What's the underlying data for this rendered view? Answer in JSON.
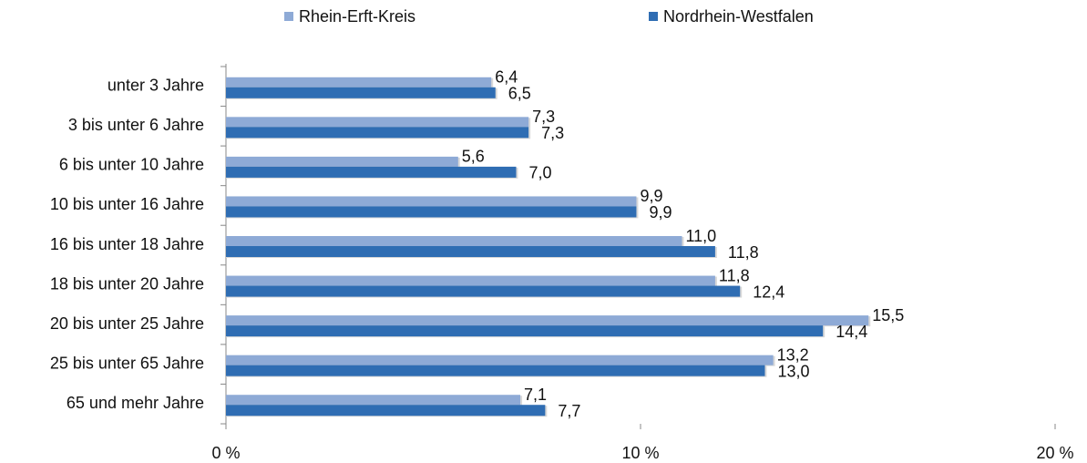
{
  "chart_data": {
    "type": "hbar",
    "categories": [
      "unter 3 Jahre",
      "3 bis unter 6 Jahre",
      "6 bis unter 10 Jahre",
      "10 bis unter 16 Jahre",
      "16 bis unter 18 Jahre",
      "18 bis unter 20 Jahre",
      "20 bis unter 25 Jahre",
      "25 bis unter 65 Jahre",
      "65 und mehr Jahre"
    ],
    "series": [
      {
        "name": "Rhein-Erft-Kreis",
        "color": "#8eaad6",
        "values": [
          6.4,
          7.3,
          5.6,
          9.9,
          11.0,
          11.8,
          15.5,
          13.2,
          7.1
        ],
        "value_labels": [
          "6,4",
          "7,3",
          "5,6",
          "9,9",
          "11,0",
          "11,8",
          "15,5",
          "13,2",
          "7,1"
        ]
      },
      {
        "name": "Nordrhein-Westfalen",
        "color": "#2f6db3",
        "values": [
          6.5,
          7.3,
          7.0,
          9.9,
          11.8,
          12.4,
          14.4,
          13.0,
          7.7
        ],
        "value_labels": [
          "6,5",
          "7,3",
          "7,0",
          "9,9",
          "11,8",
          "12,4",
          "14,4",
          "13,0",
          "7,7"
        ]
      }
    ],
    "xlim": [
      0,
      20
    ],
    "xticks": [
      {
        "value": 0,
        "label": "0 %"
      },
      {
        "value": 10,
        "label": "10 %"
      },
      {
        "value": 20,
        "label": "20 %"
      }
    ],
    "legend": "top"
  }
}
